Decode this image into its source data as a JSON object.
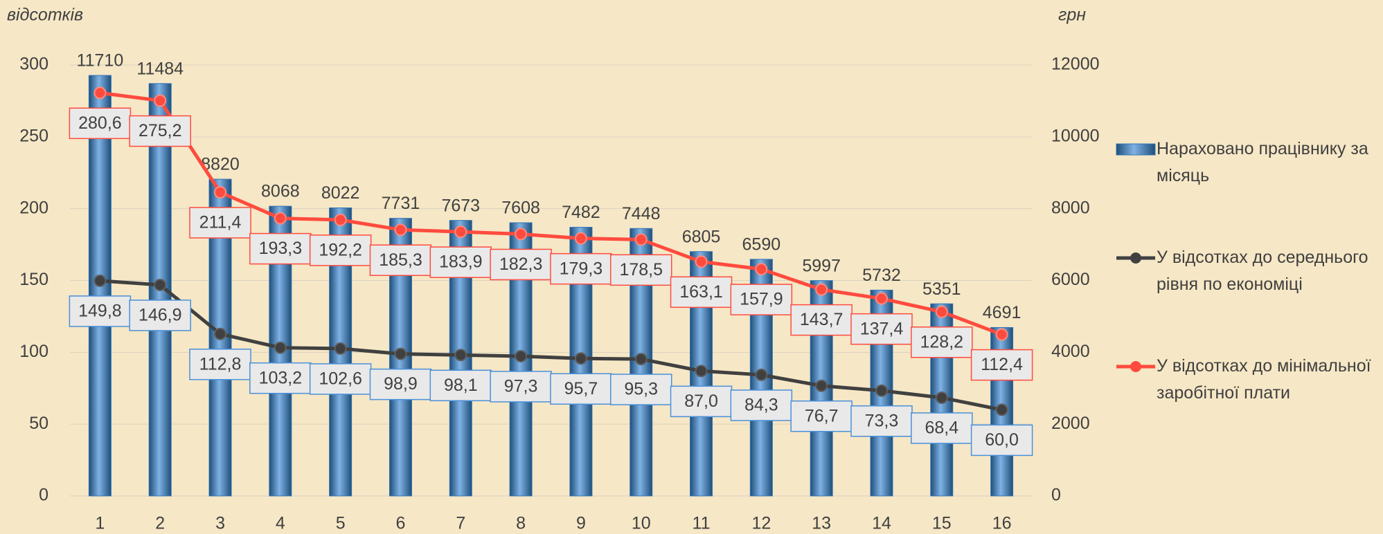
{
  "chart_data": {
    "type": "bar_line",
    "ylabel": "відсотків",
    "y2label": "грн",
    "categories": [
      "1",
      "2",
      "3",
      "4",
      "5",
      "6",
      "7",
      "8",
      "9",
      "10",
      "11",
      "12",
      "13",
      "14",
      "15",
      "16"
    ],
    "ylim": [
      0,
      300
    ],
    "yticks": [
      0,
      50,
      100,
      150,
      200,
      250,
      300
    ],
    "y2lim": [
      0,
      12000
    ],
    "y2ticks": [
      0,
      2000,
      4000,
      6000,
      8000,
      10000,
      12000
    ],
    "grid": true,
    "legend": "right",
    "series": [
      {
        "name": "Нараховано працівнику за місяць",
        "type": "bar",
        "axis": "y2",
        "color": "#2e75b6",
        "values": [
          11710,
          11484,
          8820,
          8068,
          8022,
          7731,
          7673,
          7608,
          7482,
          7448,
          6805,
          6590,
          5997,
          5732,
          5351,
          4691
        ]
      },
      {
        "name": "У відсотках до середнього рівня по економіці",
        "type": "line",
        "color": "#404040",
        "values": [
          149.8,
          146.9,
          112.8,
          103.2,
          102.6,
          98.9,
          98.1,
          97.3,
          95.7,
          95.3,
          87.0,
          84.3,
          76.7,
          73.3,
          68.4,
          60.0
        ],
        "value_labels": [
          "149,8",
          "146,9",
          "112,8",
          "103,2",
          "102,6",
          "98,9",
          "98,1",
          "97,3",
          "95,7",
          "95,3",
          "87,0",
          "84,3",
          "76,7",
          "73,3",
          "68,4",
          "60,0"
        ]
      },
      {
        "name": "У відсотках до мінімальної заробітної плати",
        "type": "line",
        "color": "#ff4b3e",
        "values": [
          280.6,
          275.2,
          211.4,
          193.3,
          192.2,
          185.3,
          183.9,
          182.3,
          179.3,
          178.5,
          163.1,
          157.9,
          143.7,
          137.4,
          128.2,
          112.4
        ],
        "value_labels": [
          "280,6",
          "275,2",
          "211,4",
          "193,3",
          "192,2",
          "185,3",
          "183,9",
          "182,3",
          "179,3",
          "178,5",
          "163,1",
          "157,9",
          "143,7",
          "137,4",
          "128,2",
          "112,4"
        ]
      }
    ]
  }
}
